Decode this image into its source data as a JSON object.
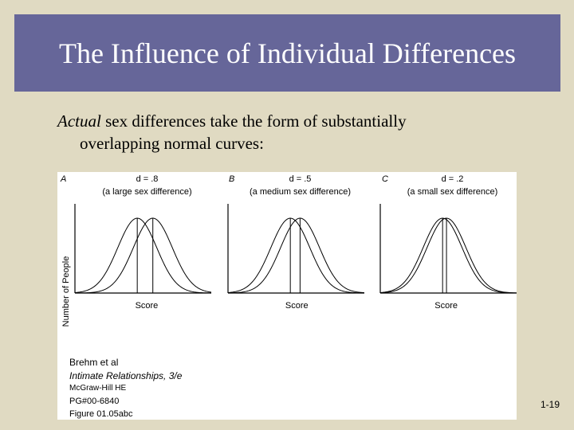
{
  "slide": {
    "title": "The Influence of Individual Differences",
    "body_emphasis": "Actual",
    "body_line1_rest": "sex differences take the form of substantially",
    "body_line2": "overlapping normal curves:",
    "slide_number": "1-19"
  },
  "figure": {
    "y_axis_label": "Number of People",
    "credit": {
      "line1": "Brehm et al",
      "line2": "Intimate Relationships, 3/e",
      "line3": "McGraw-Hill HE",
      "line4": "PG#00-6840",
      "line5": "Figure 01.05abc"
    }
  },
  "chart_data": [
    {
      "type": "line",
      "panel_letter": "A",
      "title": "d = .8",
      "subtitle": "(a large sex difference)",
      "xlabel": "Score",
      "ylabel": "Number of People",
      "effect_size_d": 0.8,
      "series": [
        {
          "distribution": "normal",
          "mean": 0.0,
          "sd": 1.0
        },
        {
          "distribution": "normal",
          "mean": 0.8,
          "sd": 1.0
        }
      ],
      "grid": false
    },
    {
      "type": "line",
      "panel_letter": "B",
      "title": "d = .5",
      "subtitle": "(a medium sex difference)",
      "xlabel": "Score",
      "ylabel": "",
      "effect_size_d": 0.5,
      "series": [
        {
          "distribution": "normal",
          "mean": 0.0,
          "sd": 1.0
        },
        {
          "distribution": "normal",
          "mean": 0.5,
          "sd": 1.0
        }
      ],
      "grid": false
    },
    {
      "type": "line",
      "panel_letter": "C",
      "title": "d = .2",
      "subtitle": "(a small sex difference)",
      "xlabel": "Score",
      "ylabel": "",
      "effect_size_d": 0.2,
      "series": [
        {
          "distribution": "normal",
          "mean": 0.0,
          "sd": 1.0
        },
        {
          "distribution": "normal",
          "mean": 0.2,
          "sd": 1.0
        }
      ],
      "grid": false
    }
  ]
}
